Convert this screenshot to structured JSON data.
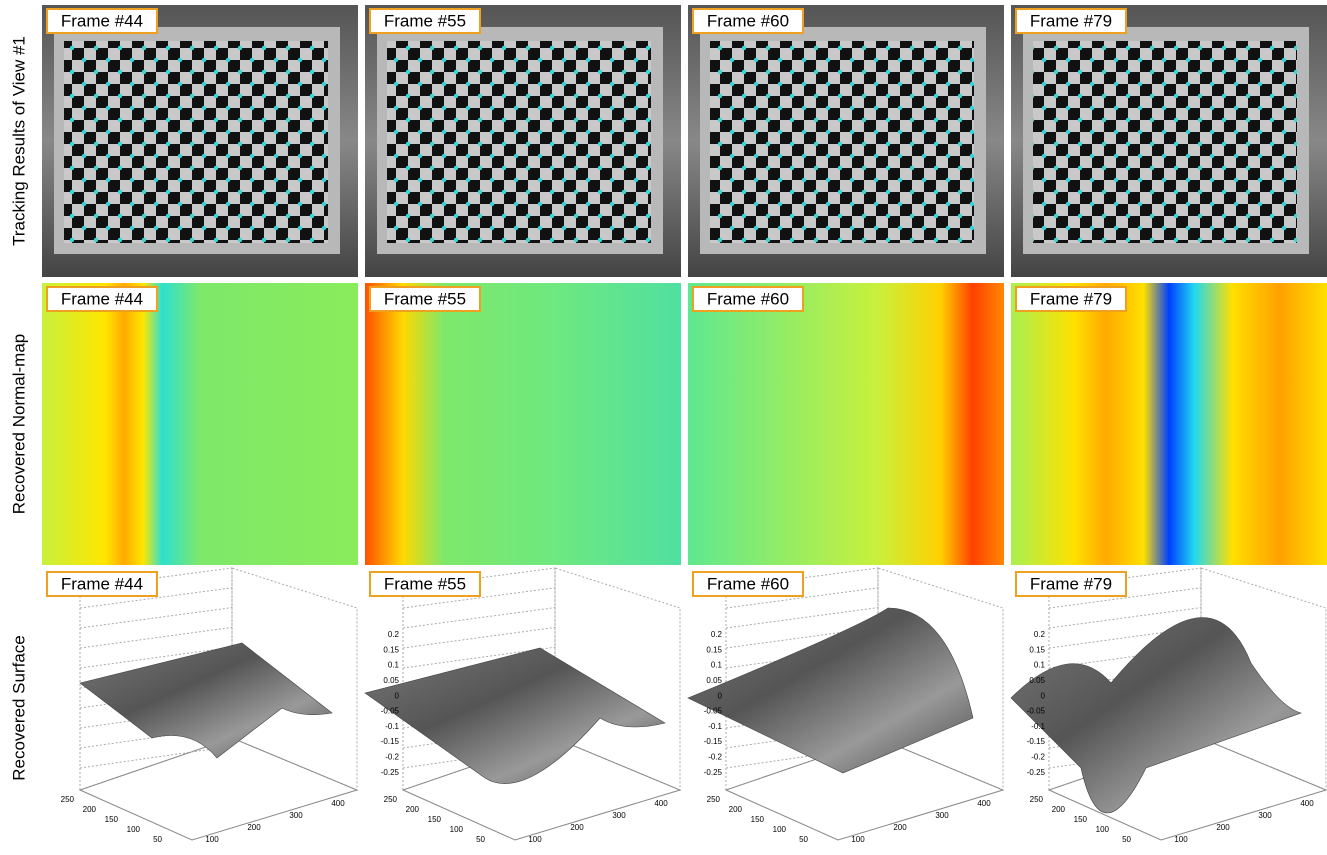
{
  "row_labels": [
    "Tracking Results of View #1",
    "Recovered Normal-map",
    "Recovered Surface"
  ],
  "frames": [
    "Frame #44",
    "Frame #55",
    "Frame #60",
    "Frame #79"
  ],
  "surface_axes": {
    "zticks": [
      "0.2",
      "0.15",
      "0.1",
      "0.05",
      "0",
      "-0.05",
      "-0.1",
      "-0.15",
      "-0.2",
      "-0.25"
    ],
    "yticks": [
      "250",
      "200",
      "150",
      "100",
      "50"
    ],
    "xticks": [
      "100",
      "200",
      "300",
      "400"
    ]
  }
}
